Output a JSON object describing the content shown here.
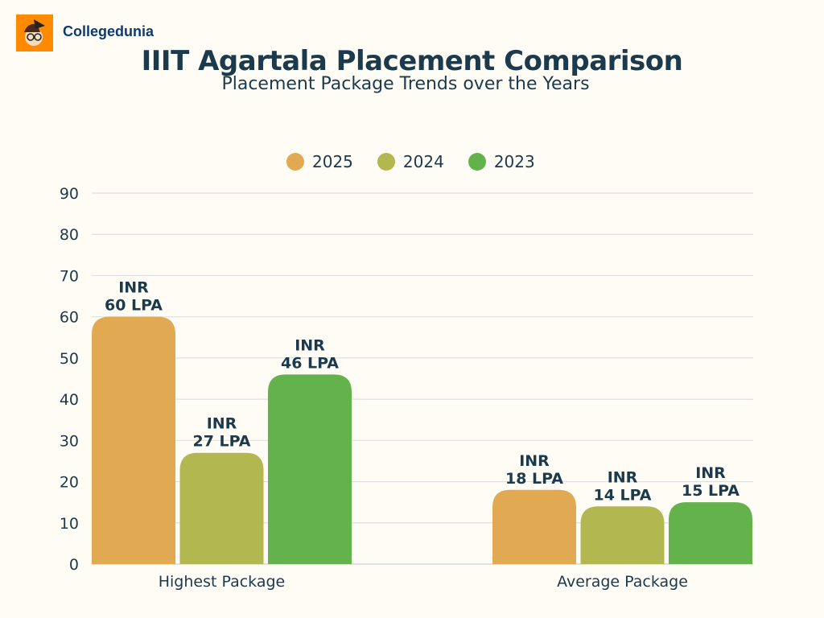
{
  "brand": {
    "name": "Collegedunia",
    "logo_color": "#ff8a00"
  },
  "chart_data": {
    "type": "bar",
    "title": "IIIT Agartala Placement Comparison",
    "subtitle": "Placement Package Trends over the Years",
    "categories": [
      "Highest Package",
      "Average Package"
    ],
    "series": [
      {
        "name": "2025",
        "color": "#e0a952",
        "values": [
          60,
          18
        ],
        "labels": [
          [
            "INR",
            "60 LPA"
          ],
          [
            "INR",
            "18 LPA"
          ]
        ]
      },
      {
        "name": "2024",
        "color": "#b2b84f",
        "values": [
          27,
          14
        ],
        "labels": [
          [
            "INR",
            "27 LPA"
          ],
          [
            "INR",
            "14 LPA"
          ]
        ]
      },
      {
        "name": "2023",
        "color": "#63b24c",
        "values": [
          46,
          15
        ],
        "labels": [
          [
            "INR",
            "46 LPA"
          ],
          [
            "INR",
            "15 LPA"
          ]
        ]
      }
    ],
    "yticks": [
      0,
      10,
      20,
      30,
      40,
      50,
      60,
      70,
      80,
      90
    ],
    "ylim": [
      0,
      90
    ],
    "grid": true,
    "legend": "top-center"
  }
}
